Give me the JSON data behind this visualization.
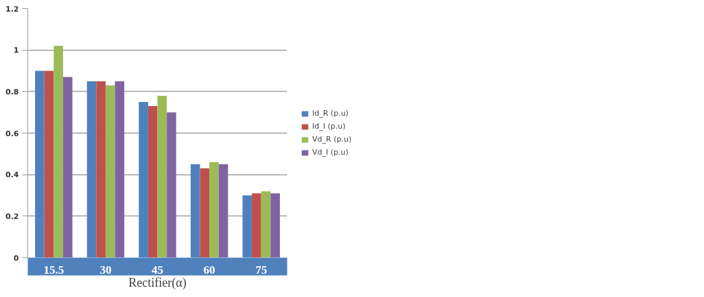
{
  "chart_data": {
    "type": "bar",
    "xlabel": "Rectifier(α)",
    "categories": [
      "15.5",
      "30",
      "45",
      "60",
      "75"
    ],
    "series": [
      {
        "name": "Id_R (p.u)",
        "color": "#4f81bd",
        "values": [
          0.9,
          0.85,
          0.75,
          0.45,
          0.3
        ]
      },
      {
        "name": "Id_I (p.u)",
        "color": "#c0504d",
        "values": [
          0.9,
          0.85,
          0.73,
          0.43,
          0.31
        ]
      },
      {
        "name": "Vd_R (p.u)",
        "color": "#9bbb59",
        "values": [
          1.02,
          0.83,
          0.78,
          0.46,
          0.32
        ]
      },
      {
        "name": "Vd_I (p.u)",
        "color": "#8064a2",
        "values": [
          0.87,
          0.85,
          0.7,
          0.45,
          0.31
        ]
      }
    ],
    "ylim": [
      0,
      1.2
    ],
    "yticks": [
      0,
      0.2,
      0.4,
      0.6,
      0.8,
      1,
      1.2
    ],
    "grid": "y",
    "legend": "right"
  }
}
